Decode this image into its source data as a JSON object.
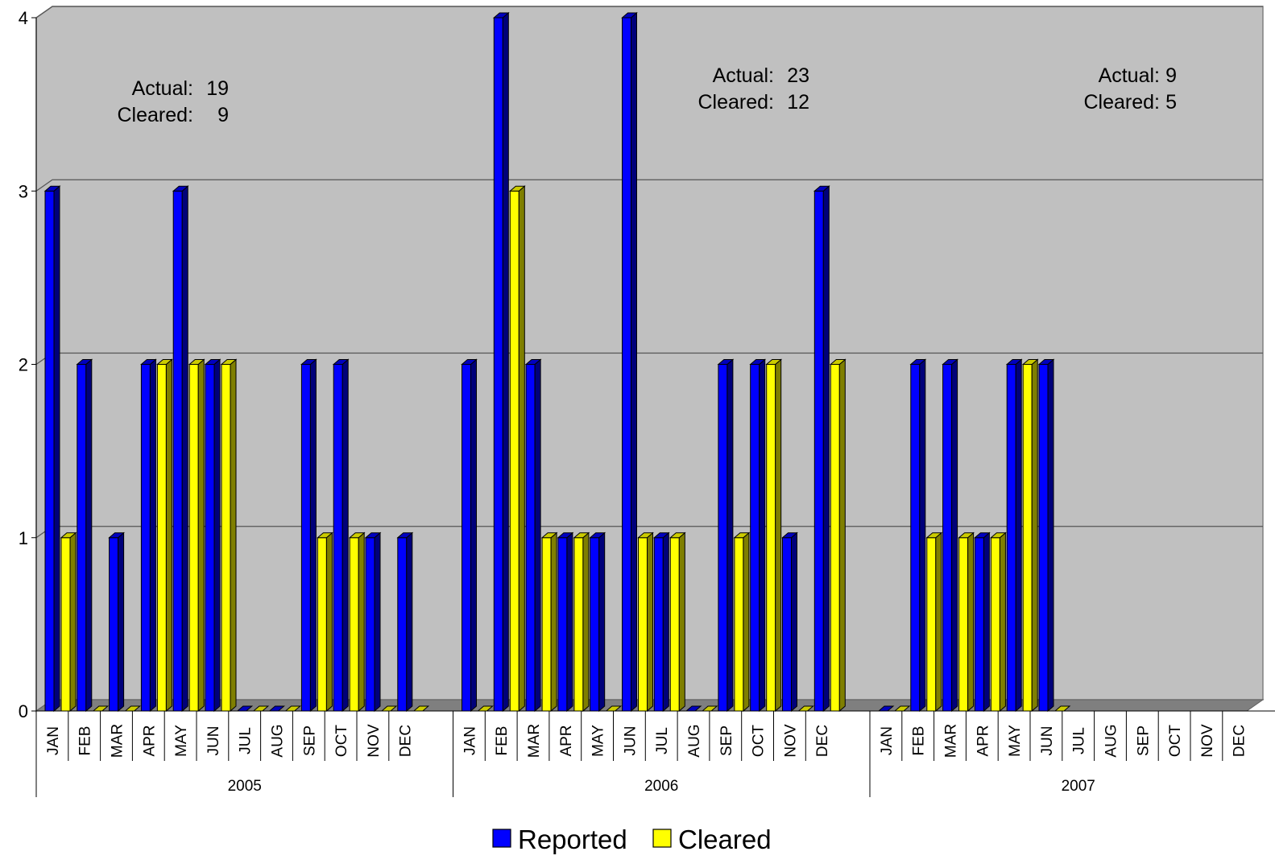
{
  "chart_data": {
    "type": "bar",
    "title": "",
    "xlabel": "",
    "ylabel": "",
    "ylim": [
      0,
      4
    ],
    "yticks": [
      "0",
      "1",
      "2",
      "3",
      "4"
    ],
    "grid": true,
    "legend_position": "bottom",
    "groups": [
      "2005",
      "2006",
      "2007"
    ],
    "months": [
      "JAN",
      "FEB",
      "MAR",
      "APR",
      "MAY",
      "JUN",
      "JUL",
      "AUG",
      "SEP",
      "OCT",
      "NOV",
      "DEC"
    ],
    "series": [
      {
        "name": "Reported",
        "color": "#0000ff",
        "values": [
          [
            3,
            2,
            1,
            2,
            3,
            2,
            0,
            0,
            2,
            2,
            1,
            1
          ],
          [
            2,
            4,
            2,
            1,
            1,
            4,
            1,
            0,
            2,
            2,
            1,
            3
          ],
          [
            0,
            2,
            2,
            1,
            2,
            2,
            null,
            null,
            null,
            null,
            null,
            null
          ]
        ]
      },
      {
        "name": "Cleared",
        "color": "#ffff00",
        "values": [
          [
            1,
            0,
            0,
            2,
            2,
            2,
            0,
            0,
            1,
            1,
            0,
            0
          ],
          [
            0,
            3,
            1,
            1,
            0,
            1,
            1,
            0,
            1,
            2,
            0,
            2
          ],
          [
            0,
            1,
            1,
            1,
            2,
            0,
            null,
            null,
            null,
            null,
            null,
            null
          ]
        ]
      }
    ],
    "annotations": [
      {
        "group": "2005",
        "actual_label": "Actual:",
        "actual": "19",
        "cleared_label": "Cleared:",
        "cleared": "9"
      },
      {
        "group": "2006",
        "actual_label": "Actual:",
        "actual": "23",
        "cleared_label": "Cleared:",
        "cleared": "12"
      },
      {
        "group": "2007",
        "actual_label": "Actual:",
        "actual": "9",
        "cleared_label": "Cleared:",
        "cleared": "5"
      }
    ]
  }
}
